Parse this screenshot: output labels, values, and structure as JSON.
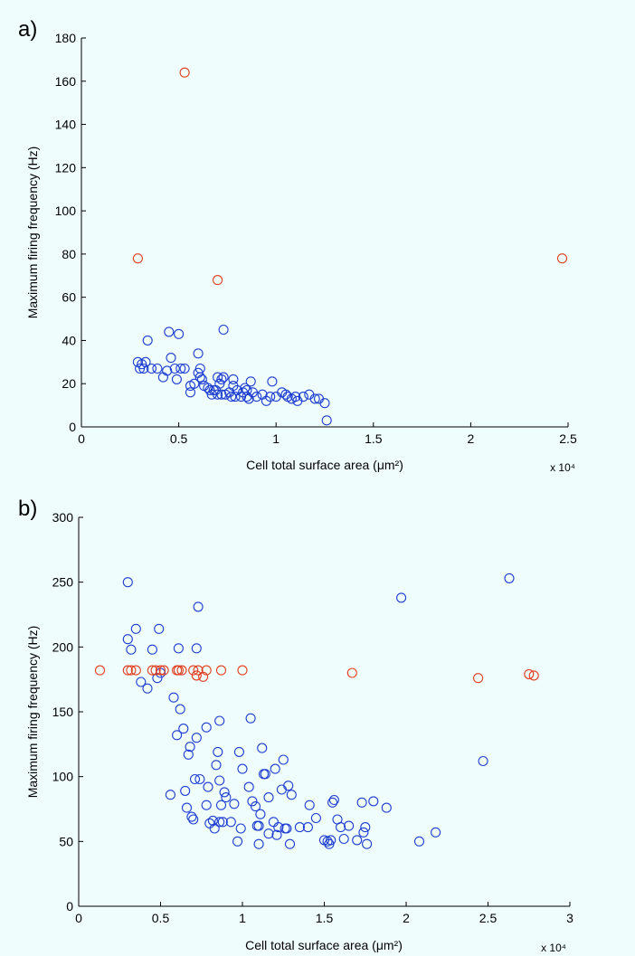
{
  "chart_data": [
    {
      "type": "scatter",
      "panel_label": "a)",
      "xlabel": "Cell total surface area (μm²)",
      "ylabel": "Maximum firing frequency (Hz)",
      "x_exponent_label": "x 10⁴",
      "xlim": [
        0,
        2.5
      ],
      "ylim": [
        0,
        180
      ],
      "x_ticks": [
        0,
        0.5,
        1,
        1.5,
        2,
        2.5
      ],
      "x_tick_labels": [
        "0",
        "0.5",
        "1",
        "1.5",
        "2",
        "2.5"
      ],
      "y_ticks": [
        0,
        20,
        40,
        60,
        80,
        100,
        120,
        140,
        160,
        180
      ],
      "y_tick_labels": [
        "0",
        "20",
        "40",
        "60",
        "80",
        "100",
        "120",
        "140",
        "160",
        "180"
      ],
      "marker": "circle-open",
      "series": [
        {
          "color": "#1f3fd0",
          "points": [
            [
              0.29,
              30
            ],
            [
              0.3,
              27
            ],
            [
              0.31,
              29
            ],
            [
              0.32,
              27
            ],
            [
              0.33,
              30
            ],
            [
              0.34,
              40
            ],
            [
              0.36,
              27
            ],
            [
              0.39,
              27
            ],
            [
              0.42,
              23
            ],
            [
              0.44,
              26
            ],
            [
              0.45,
              44
            ],
            [
              0.46,
              32
            ],
            [
              0.48,
              27
            ],
            [
              0.49,
              22
            ],
            [
              0.5,
              43
            ],
            [
              0.51,
              27
            ],
            [
              0.53,
              27
            ],
            [
              0.56,
              19
            ],
            [
              0.56,
              16
            ],
            [
              0.58,
              20
            ],
            [
              0.6,
              25
            ],
            [
              0.6,
              34
            ],
            [
              0.61,
              23
            ],
            [
              0.61,
              27
            ],
            [
              0.62,
              22
            ],
            [
              0.63,
              19
            ],
            [
              0.65,
              18
            ],
            [
              0.66,
              17
            ],
            [
              0.67,
              15
            ],
            [
              0.68,
              17
            ],
            [
              0.69,
              17
            ],
            [
              0.7,
              23
            ],
            [
              0.7,
              15
            ],
            [
              0.71,
              20
            ],
            [
              0.72,
              22
            ],
            [
              0.72,
              15
            ],
            [
              0.73,
              23
            ],
            [
              0.73,
              45
            ],
            [
              0.74,
              15
            ],
            [
              0.76,
              16
            ],
            [
              0.77,
              14
            ],
            [
              0.78,
              19
            ],
            [
              0.78,
              22
            ],
            [
              0.79,
              14
            ],
            [
              0.8,
              17
            ],
            [
              0.82,
              14
            ],
            [
              0.83,
              16
            ],
            [
              0.84,
              18
            ],
            [
              0.85,
              17
            ],
            [
              0.85,
              14
            ],
            [
              0.86,
              13
            ],
            [
              0.87,
              21
            ],
            [
              0.88,
              16
            ],
            [
              0.9,
              14
            ],
            [
              0.93,
              15
            ],
            [
              0.95,
              12
            ],
            [
              0.97,
              14
            ],
            [
              0.98,
              21
            ],
            [
              1.0,
              14
            ],
            [
              1.03,
              16
            ],
            [
              1.05,
              15
            ],
            [
              1.06,
              14
            ],
            [
              1.08,
              13
            ],
            [
              1.1,
              14
            ],
            [
              1.11,
              12
            ],
            [
              1.14,
              14
            ],
            [
              1.17,
              15
            ],
            [
              1.2,
              13
            ],
            [
              1.22,
              13
            ],
            [
              1.25,
              11
            ],
            [
              1.26,
              3
            ]
          ]
        },
        {
          "color": "#e04020",
          "points": [
            [
              0.29,
              78
            ],
            [
              0.53,
              164
            ],
            [
              0.7,
              68
            ],
            [
              2.47,
              78
            ]
          ]
        }
      ]
    },
    {
      "type": "scatter",
      "panel_label": "b)",
      "xlabel": "Cell total surface area (μm²)",
      "ylabel": "Maximum firing frequency (Hz)",
      "x_exponent_label": "x 10⁴",
      "xlim": [
        0,
        3
      ],
      "ylim": [
        0,
        300
      ],
      "x_ticks": [
        0,
        0.5,
        1,
        1.5,
        2,
        2.5,
        3
      ],
      "x_tick_labels": [
        "0",
        "0.5",
        "1",
        "1.5",
        "2",
        "2.5",
        "3"
      ],
      "y_ticks": [
        0,
        50,
        100,
        150,
        200,
        250,
        300
      ],
      "y_tick_labels": [
        "0",
        "50",
        "100",
        "150",
        "200",
        "250",
        "300"
      ],
      "marker": "circle-open",
      "series": [
        {
          "color": "#1f3fd0",
          "points": [
            [
              0.3,
              250
            ],
            [
              0.3,
              206
            ],
            [
              0.32,
              198
            ],
            [
              0.35,
              214
            ],
            [
              0.38,
              173
            ],
            [
              0.42,
              168
            ],
            [
              0.45,
              198
            ],
            [
              0.48,
              176
            ],
            [
              0.49,
              214
            ],
            [
              0.5,
              180
            ],
            [
              0.56,
              86
            ],
            [
              0.58,
              161
            ],
            [
              0.6,
              132
            ],
            [
              0.61,
              199
            ],
            [
              0.62,
              152
            ],
            [
              0.64,
              137
            ],
            [
              0.65,
              89
            ],
            [
              0.66,
              76
            ],
            [
              0.67,
              117
            ],
            [
              0.68,
              123
            ],
            [
              0.69,
              69
            ],
            [
              0.7,
              67
            ],
            [
              0.71,
              98
            ],
            [
              0.72,
              130
            ],
            [
              0.72,
              199
            ],
            [
              0.73,
              231
            ],
            [
              0.74,
              98
            ],
            [
              0.78,
              138
            ],
            [
              0.78,
              78
            ],
            [
              0.79,
              92
            ],
            [
              0.8,
              64
            ],
            [
              0.82,
              66
            ],
            [
              0.83,
              60
            ],
            [
              0.84,
              109
            ],
            [
              0.85,
              119
            ],
            [
              0.86,
              143
            ],
            [
              0.86,
              65
            ],
            [
              0.86,
              97
            ],
            [
              0.87,
              78
            ],
            [
              0.88,
              65
            ],
            [
              0.89,
              88
            ],
            [
              0.9,
              84
            ],
            [
              0.93,
              65
            ],
            [
              0.95,
              79
            ],
            [
              0.97,
              50
            ],
            [
              0.98,
              119
            ],
            [
              0.99,
              60
            ],
            [
              1.0,
              106
            ],
            [
              1.04,
              92
            ],
            [
              1.05,
              145
            ],
            [
              1.06,
              81
            ],
            [
              1.08,
              77
            ],
            [
              1.09,
              62
            ],
            [
              1.1,
              48
            ],
            [
              1.1,
              62
            ],
            [
              1.11,
              71
            ],
            [
              1.12,
              122
            ],
            [
              1.13,
              102
            ],
            [
              1.14,
              102
            ],
            [
              1.16,
              84
            ],
            [
              1.16,
              56
            ],
            [
              1.19,
              65
            ],
            [
              1.2,
              106
            ],
            [
              1.21,
              55
            ],
            [
              1.22,
              61
            ],
            [
              1.24,
              90
            ],
            [
              1.25,
              113
            ],
            [
              1.26,
              60
            ],
            [
              1.27,
              60
            ],
            [
              1.28,
              93
            ],
            [
              1.29,
              48
            ],
            [
              1.3,
              86
            ],
            [
              1.35,
              61
            ],
            [
              1.4,
              61
            ],
            [
              1.41,
              78
            ],
            [
              1.45,
              68
            ],
            [
              1.5,
              51
            ],
            [
              1.52,
              50
            ],
            [
              1.53,
              48
            ],
            [
              1.54,
              51
            ],
            [
              1.55,
              80
            ],
            [
              1.56,
              82
            ],
            [
              1.58,
              67
            ],
            [
              1.6,
              61
            ],
            [
              1.62,
              52
            ],
            [
              1.65,
              62
            ],
            [
              1.7,
              51
            ],
            [
              1.73,
              80
            ],
            [
              1.74,
              57
            ],
            [
              1.75,
              61
            ],
            [
              1.76,
              48
            ],
            [
              1.8,
              81
            ],
            [
              1.88,
              76
            ],
            [
              1.97,
              238
            ],
            [
              2.08,
              50
            ],
            [
              2.18,
              57
            ],
            [
              2.47,
              112
            ],
            [
              2.63,
              253
            ]
          ]
        },
        {
          "color": "#e04020",
          "points": [
            [
              0.13,
              182
            ],
            [
              0.3,
              182
            ],
            [
              0.32,
              182
            ],
            [
              0.35,
              182
            ],
            [
              0.45,
              182
            ],
            [
              0.47,
              182
            ],
            [
              0.5,
              182
            ],
            [
              0.52,
              182
            ],
            [
              0.6,
              182
            ],
            [
              0.61,
              182
            ],
            [
              0.63,
              182
            ],
            [
              0.7,
              182
            ],
            [
              0.72,
              178
            ],
            [
              0.73,
              182
            ],
            [
              0.76,
              177
            ],
            [
              0.78,
              182
            ],
            [
              0.87,
              182
            ],
            [
              1.0,
              182
            ],
            [
              1.67,
              180
            ],
            [
              2.44,
              176
            ],
            [
              2.75,
              179
            ],
            [
              2.78,
              178
            ]
          ]
        }
      ]
    }
  ]
}
